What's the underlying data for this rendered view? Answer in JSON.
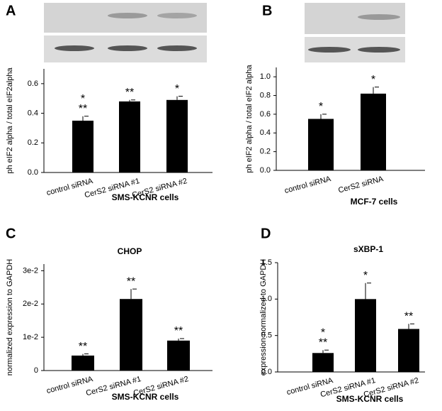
{
  "chart_data": [
    {
      "type": "bar",
      "panel": "A",
      "ylabel": "ph eIF2 alpha / total eIF2alpha",
      "note": "SMS-KCNR cells",
      "categories": [
        "control siRNA",
        "CerS2 siRNA #1",
        "CerS2 siRNA #2"
      ],
      "values": [
        0.35,
        0.48,
        0.49
      ],
      "errors": [
        0.03,
        0.01,
        0.025
      ],
      "significance": [
        [
          "*",
          "**"
        ],
        [
          "**"
        ],
        [
          "*"
        ]
      ],
      "color": "#000000",
      "ylim": [
        0,
        0.7
      ],
      "yticks": [
        {
          "value": 0,
          "label": "0.0"
        },
        0.2,
        0.4,
        0.6
      ]
    },
    {
      "type": "bar",
      "panel": "B",
      "ylabel": "ph eIF2 alpha / total eIF2 alpha",
      "note": "MCF-7 cells",
      "categories": [
        "control siRNA",
        "CerS2 siRNA"
      ],
      "values": [
        0.55,
        0.82
      ],
      "errors": [
        0.05,
        0.07
      ],
      "significance": [
        [
          "*"
        ],
        [
          "*"
        ]
      ],
      "color": "#000000",
      "ylim": [
        0,
        1.1
      ],
      "yticks": [
        {
          "value": 0,
          "label": "0.0"
        },
        0.2,
        0.4,
        0.6,
        0.8,
        {
          "value": 1,
          "label": "1.0"
        }
      ]
    },
    {
      "type": "bar",
      "panel": "C",
      "title": "CHOP",
      "ylabel": "normalized expression to GAPDH",
      "note": "SMS-KCNR cells",
      "categories": [
        "control siRNA",
        "CerS2 siRNA #1",
        "CerS2 siRNA #2"
      ],
      "values": [
        0.0045,
        0.0215,
        0.009
      ],
      "errors": [
        0.0005,
        0.003,
        0.0006
      ],
      "significance": [
        [
          "**"
        ],
        [
          "**"
        ],
        [
          "**"
        ]
      ],
      "color": "#000000",
      "ylim": [
        0,
        0.032
      ],
      "yticks": [
        0,
        {
          "value": 0.01,
          "label": "1e-2"
        },
        {
          "value": 0.02,
          "label": "2e-2"
        },
        {
          "value": 0.03,
          "label": "3e-2"
        }
      ]
    },
    {
      "type": "bar",
      "panel": "D",
      "title": "sXBP-1",
      "ylabel": "expression normalized to GAPDH",
      "note": "SMS-KCNR cells",
      "categories": [
        "control siRNA",
        "CerS2 siRNA #1",
        "CerS2 siRNA #2"
      ],
      "values": [
        0.26,
        1.0,
        0.59
      ],
      "errors": [
        0.04,
        0.22,
        0.07
      ],
      "significance": [
        [
          "*",
          "**"
        ],
        [
          "*"
        ],
        [
          "**"
        ]
      ],
      "color": "#000000",
      "ylim": [
        0,
        1.5
      ],
      "yticks": [
        {
          "value": 0,
          "label": "0.0"
        },
        0.5,
        {
          "value": 1,
          "label": "1.0"
        },
        1.5
      ]
    }
  ]
}
